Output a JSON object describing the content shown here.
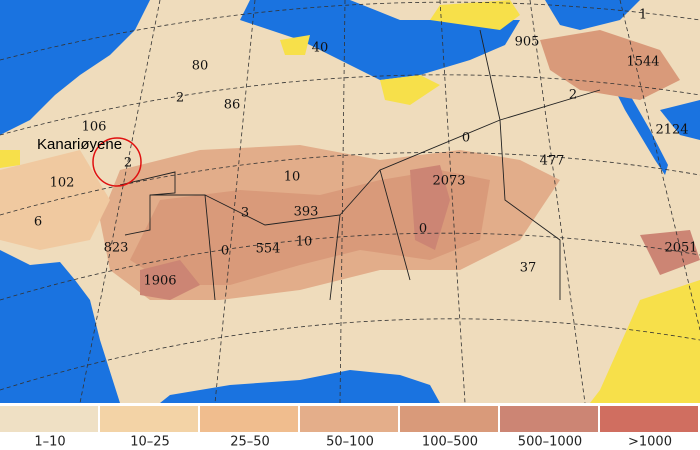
{
  "map": {
    "place_label": "Kanariøyene",
    "labels": [
      1,
      905,
      1544,
      40,
      80,
      2,
      86,
      2,
      2124,
      106,
      0,
      477,
      2,
      10,
      102,
      2073,
      6,
      3,
      393,
      0,
      823,
      0,
      554,
      10,
      2051,
      37,
      1906
    ],
    "legend": [
      {
        "label": "1–10",
        "color": "#efe0c4"
      },
      {
        "label": "10–25",
        "color": "#f3d3a6"
      },
      {
        "label": "25–50",
        "color": "#f0bd8e"
      },
      {
        "label": "50–100",
        "color": "#e4ae8a"
      },
      {
        "label": "100–500",
        "color": "#d99a7a"
      },
      {
        "label": "500–1000",
        "color": "#cc8574"
      },
      {
        "label": ">1000",
        "color": "#d06e60"
      }
    ]
  }
}
